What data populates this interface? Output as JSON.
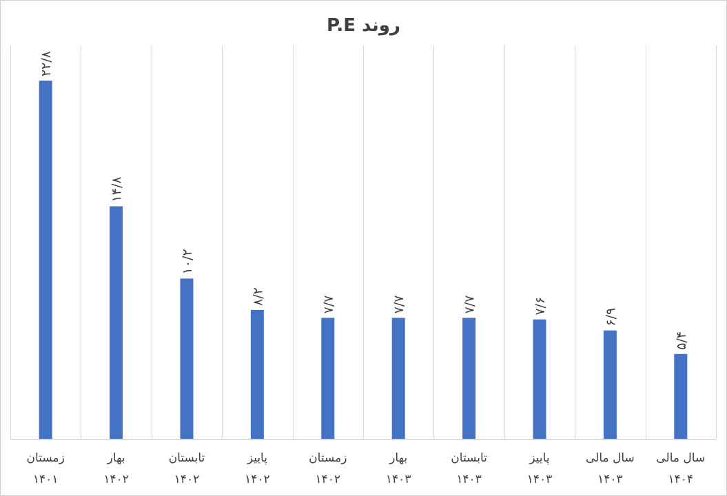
{
  "chart_data": {
    "type": "bar",
    "title": "روند P.E",
    "xlabel": "",
    "ylabel": "",
    "grid": "vertical",
    "ylim": [
      0,
      24
    ],
    "categories": [
      [
        "زمستان",
        "۱۴۰۱"
      ],
      [
        "بهار",
        "۱۴۰۲"
      ],
      [
        "تابستان",
        "۱۴۰۲"
      ],
      [
        "پاییز",
        "۱۴۰۲"
      ],
      [
        "زمستان",
        "۱۴۰۲"
      ],
      [
        "بهار",
        "۱۴۰۳"
      ],
      [
        "تابستان",
        "۱۴۰۳"
      ],
      [
        "پاییز",
        "۱۴۰۳"
      ],
      [
        "سال مالی",
        "۱۴۰۳"
      ],
      [
        "سال مالی",
        "۱۴۰۴"
      ]
    ],
    "values": [
      22.8,
      14.8,
      10.2,
      8.2,
      7.7,
      7.7,
      7.7,
      7.6,
      6.9,
      5.4
    ],
    "data_labels": [
      "۲۲/۸",
      "۱۴/۸",
      "۱۰/۲",
      "۸/۲",
      "۷/۷",
      "۷/۷",
      "۷/۷",
      "۷/۶",
      "۶/۹",
      "۵/۴"
    ],
    "colors": {
      "bar": "#4472c4",
      "grid": "#d9d9d9",
      "text": "#404040"
    }
  }
}
